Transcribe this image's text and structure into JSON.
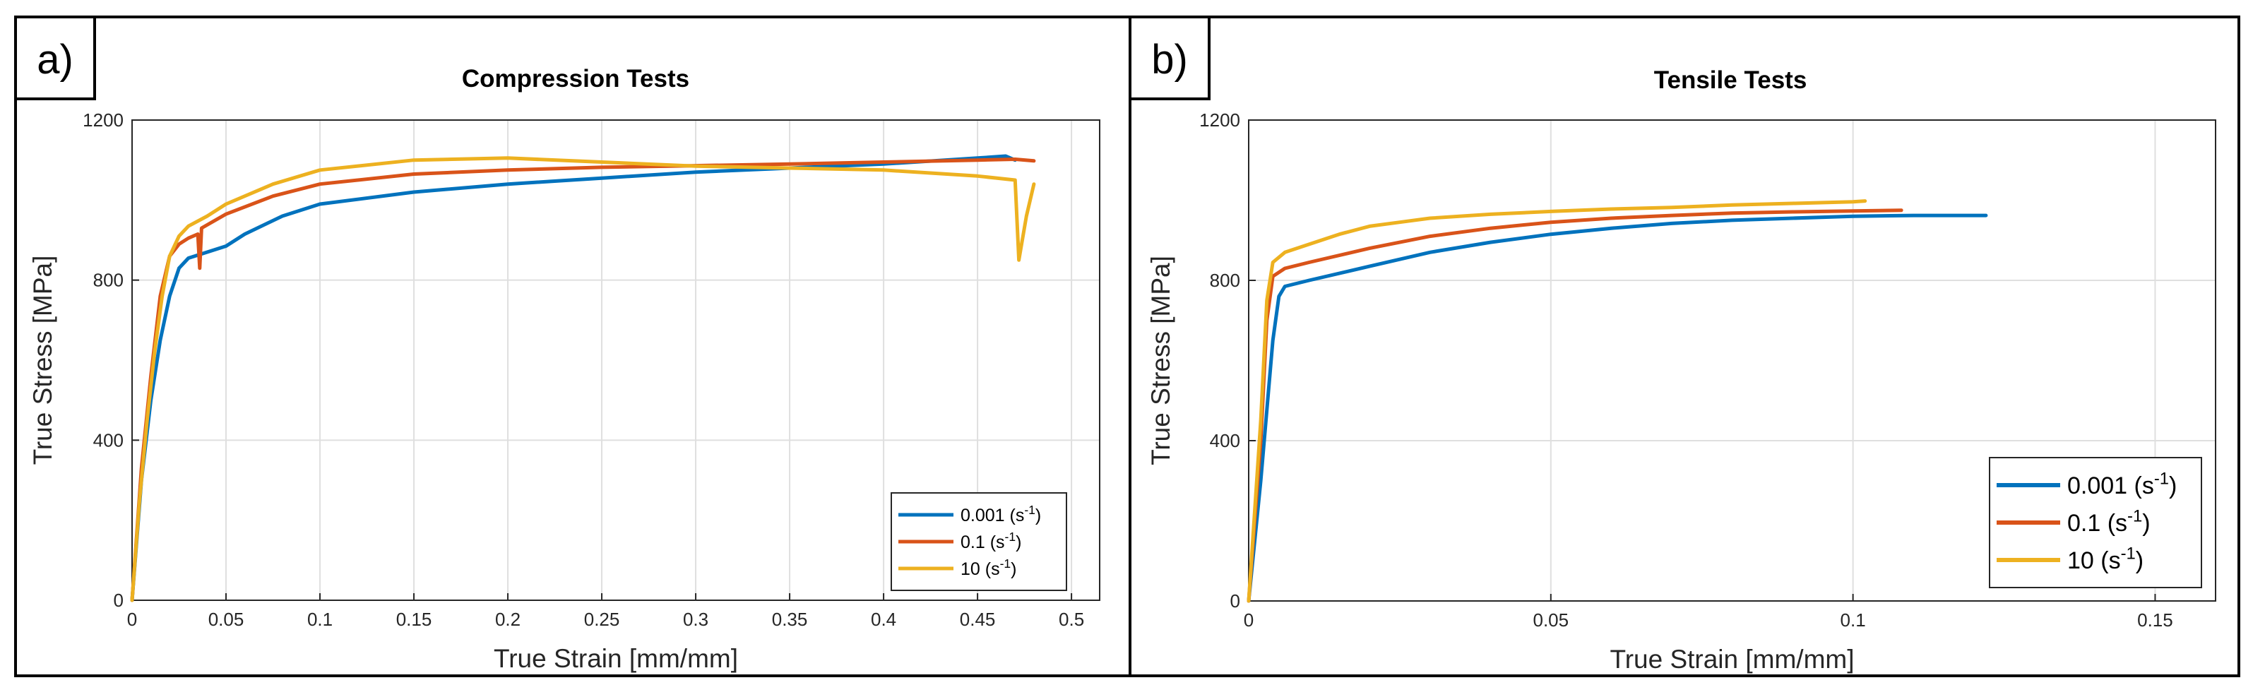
{
  "figure": {
    "panels": [
      {
        "label": "a)"
      },
      {
        "label": "b)"
      }
    ]
  },
  "chart_data": [
    {
      "type": "line",
      "title": "Compression Tests",
      "xlabel": "True Strain [mm/mm]",
      "ylabel": "True Stress [MPa]",
      "xlim": [
        0,
        0.515
      ],
      "ylim": [
        0,
        1200
      ],
      "xticks": [
        0,
        0.05,
        0.1,
        0.15,
        0.2,
        0.25,
        0.3,
        0.35,
        0.4,
        0.45,
        0.5
      ],
      "xtick_labels": [
        "0",
        "0.05",
        "0.1",
        "0.15",
        "0.2",
        "0.25",
        "0.3",
        "0.35",
        "0.4",
        "0.45",
        "0.5"
      ],
      "yticks": [
        0,
        400,
        800,
        1200
      ],
      "ytick_labels": [
        "0",
        "400",
        "800",
        "1200"
      ],
      "grid": true,
      "legend_position": "bottom-right",
      "series": [
        {
          "name": "0.001",
          "unit_base": "(s",
          "unit_exp": "-1",
          "unit_close": ")",
          "color": "#0072BD",
          "points": [
            [
              0,
              0
            ],
            [
              0.005,
              300
            ],
            [
              0.01,
              500
            ],
            [
              0.015,
              650
            ],
            [
              0.02,
              760
            ],
            [
              0.025,
              830
            ],
            [
              0.03,
              855
            ],
            [
              0.04,
              870
            ],
            [
              0.05,
              885
            ],
            [
              0.06,
              915
            ],
            [
              0.08,
              960
            ],
            [
              0.1,
              990
            ],
            [
              0.15,
              1020
            ],
            [
              0.2,
              1040
            ],
            [
              0.25,
              1055
            ],
            [
              0.3,
              1070
            ],
            [
              0.35,
              1080
            ],
            [
              0.4,
              1090
            ],
            [
              0.45,
              1105
            ],
            [
              0.465,
              1110
            ],
            [
              0.47,
              1100
            ]
          ]
        },
        {
          "name": "0.1",
          "unit_base": "(s",
          "unit_exp": "-1",
          "unit_close": ")",
          "color": "#D95319",
          "points": [
            [
              0,
              0
            ],
            [
              0.005,
              330
            ],
            [
              0.01,
              560
            ],
            [
              0.015,
              760
            ],
            [
              0.02,
              860
            ],
            [
              0.025,
              890
            ],
            [
              0.03,
              905
            ],
            [
              0.035,
              915
            ],
            [
              0.036,
              830
            ],
            [
              0.037,
              930
            ],
            [
              0.05,
              965
            ],
            [
              0.075,
              1010
            ],
            [
              0.1,
              1040
            ],
            [
              0.15,
              1065
            ],
            [
              0.2,
              1075
            ],
            [
              0.25,
              1082
            ],
            [
              0.3,
              1086
            ],
            [
              0.35,
              1090
            ],
            [
              0.4,
              1095
            ],
            [
              0.45,
              1100
            ],
            [
              0.47,
              1102
            ],
            [
              0.48,
              1098
            ]
          ]
        },
        {
          "name": "10",
          "unit_base": "(s",
          "unit_exp": "-1",
          "unit_close": ")",
          "color": "#EDB120",
          "points": [
            [
              0,
              0
            ],
            [
              0.004,
              250
            ],
            [
              0.008,
              450
            ],
            [
              0.012,
              620
            ],
            [
              0.016,
              760
            ],
            [
              0.02,
              860
            ],
            [
              0.025,
              910
            ],
            [
              0.03,
              935
            ],
            [
              0.04,
              960
            ],
            [
              0.05,
              990
            ],
            [
              0.075,
              1040
            ],
            [
              0.1,
              1075
            ],
            [
              0.15,
              1100
            ],
            [
              0.2,
              1105
            ],
            [
              0.25,
              1095
            ],
            [
              0.3,
              1085
            ],
            [
              0.35,
              1080
            ],
            [
              0.4,
              1075
            ],
            [
              0.45,
              1060
            ],
            [
              0.47,
              1050
            ],
            [
              0.472,
              850
            ],
            [
              0.476,
              960
            ],
            [
              0.48,
              1040
            ]
          ]
        }
      ]
    },
    {
      "type": "line",
      "title": "Tensile Tests",
      "xlabel": "True Strain [mm/mm]",
      "ylabel": "True Stress [MPa]",
      "xlim": [
        0,
        0.16
      ],
      "ylim": [
        0,
        1200
      ],
      "xticks": [
        0,
        0.05,
        0.1,
        0.15
      ],
      "xtick_labels": [
        "0",
        "0.05",
        "0.1",
        "0.15"
      ],
      "yticks": [
        0,
        400,
        800,
        1200
      ],
      "ytick_labels": [
        "0",
        "400",
        "800",
        "1200"
      ],
      "grid": true,
      "legend_position": "bottom-right",
      "series": [
        {
          "name": "0.001",
          "unit_base": "(s",
          "unit_exp": "-1",
          "unit_close": ")",
          "color": "#0072BD",
          "points": [
            [
              0,
              0
            ],
            [
              0.002,
              300
            ],
            [
              0.004,
              650
            ],
            [
              0.005,
              760
            ],
            [
              0.006,
              785
            ],
            [
              0.01,
              800
            ],
            [
              0.02,
              835
            ],
            [
              0.03,
              870
            ],
            [
              0.04,
              895
            ],
            [
              0.05,
              915
            ],
            [
              0.06,
              930
            ],
            [
              0.07,
              942
            ],
            [
              0.08,
              950
            ],
            [
              0.09,
              955
            ],
            [
              0.1,
              960
            ],
            [
              0.11,
              962
            ],
            [
              0.122,
              962
            ]
          ]
        },
        {
          "name": "0.1",
          "unit_base": "(s",
          "unit_exp": "-1",
          "unit_close": ")",
          "color": "#D95319",
          "points": [
            [
              0,
              0
            ],
            [
              0.002,
              400
            ],
            [
              0.003,
              700
            ],
            [
              0.004,
              810
            ],
            [
              0.006,
              830
            ],
            [
              0.01,
              845
            ],
            [
              0.02,
              880
            ],
            [
              0.03,
              910
            ],
            [
              0.04,
              930
            ],
            [
              0.05,
              945
            ],
            [
              0.06,
              955
            ],
            [
              0.07,
              962
            ],
            [
              0.08,
              968
            ],
            [
              0.09,
              971
            ],
            [
              0.1,
              973
            ],
            [
              0.108,
              975
            ]
          ]
        },
        {
          "name": "10",
          "unit_base": "(s",
          "unit_exp": "-1",
          "unit_close": ")",
          "color": "#EDB120",
          "points": [
            [
              0,
              0
            ],
            [
              0.002,
              450
            ],
            [
              0.003,
              750
            ],
            [
              0.004,
              845
            ],
            [
              0.006,
              870
            ],
            [
              0.01,
              890
            ],
            [
              0.015,
              915
            ],
            [
              0.02,
              935
            ],
            [
              0.025,
              945
            ],
            [
              0.03,
              955
            ],
            [
              0.04,
              965
            ],
            [
              0.05,
              972
            ],
            [
              0.06,
              978
            ],
            [
              0.07,
              982
            ],
            [
              0.08,
              988
            ],
            [
              0.09,
              992
            ],
            [
              0.1,
              996
            ],
            [
              0.102,
              998
            ]
          ]
        }
      ]
    }
  ]
}
